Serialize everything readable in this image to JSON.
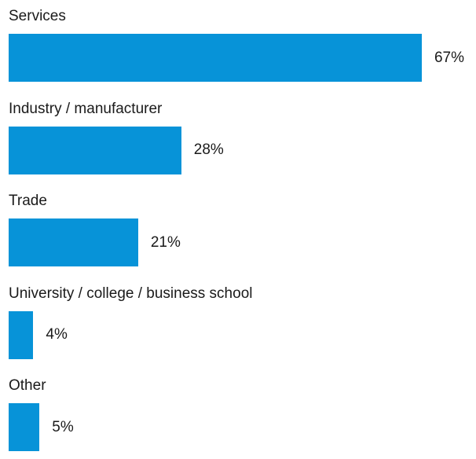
{
  "chart_data": {
    "type": "bar",
    "orientation": "horizontal",
    "categories": [
      "Services",
      "Industry / manufacturer",
      "Trade",
      "University / college / business school",
      "Other"
    ],
    "values": [
      67,
      28,
      21,
      4,
      5
    ],
    "value_labels": [
      "67%",
      "28%",
      "21%",
      "4%",
      "5%"
    ],
    "unit": "%",
    "title": "",
    "xlabel": "",
    "ylabel": "",
    "grid": false,
    "legend": "none",
    "bar_color": "#0793d8"
  }
}
